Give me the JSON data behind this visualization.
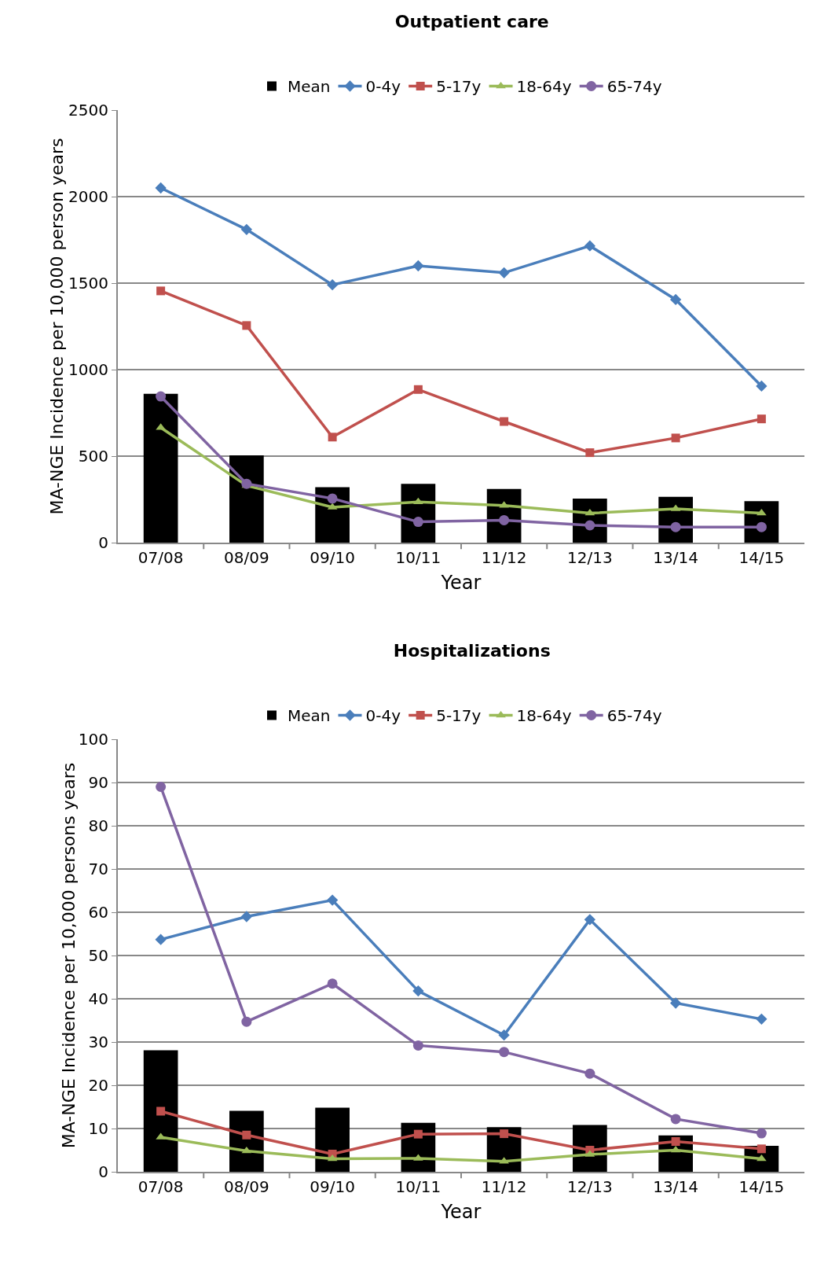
{
  "chart_data": [
    {
      "type": "line",
      "title": "Outpatient care",
      "xlabel": "Year",
      "ylabel": "MA-NGE Incidence per 10,000 person years",
      "categories": [
        "07/08",
        "08/09",
        "09/10",
        "10/11",
        "11/12",
        "12/13",
        "13/14",
        "14/15"
      ],
      "ylim": [
        0,
        2500
      ],
      "yticks": [
        0,
        500,
        1000,
        1500,
        2000,
        2500
      ],
      "grid": "y",
      "legend": "top",
      "series": [
        {
          "name": "Mean",
          "type": "bar",
          "color": "#000000",
          "values": [
            860,
            505,
            320,
            340,
            310,
            255,
            265,
            240
          ]
        },
        {
          "name": "0-4y",
          "color": "#4a7ebb",
          "marker": "diamond",
          "values": [
            2050,
            1810,
            1490,
            1600,
            1560,
            1715,
            1405,
            905
          ]
        },
        {
          "name": "5-17y",
          "color": "#c0504d",
          "marker": "square",
          "values": [
            1455,
            1255,
            610,
            885,
            700,
            520,
            605,
            715
          ]
        },
        {
          "name": "18-64y",
          "color": "#9bbb59",
          "marker": "triangle",
          "values": [
            665,
            330,
            205,
            235,
            215,
            170,
            195,
            170
          ]
        },
        {
          "name": "65-74y",
          "color": "#8064a2",
          "marker": "circle",
          "values": [
            845,
            340,
            255,
            120,
            130,
            100,
            90,
            90
          ]
        }
      ]
    },
    {
      "type": "line",
      "title": "Hospitalizations",
      "xlabel": "Year",
      "ylabel": "MA-NGE Incidence per 10,000 persons years",
      "categories": [
        "07/08",
        "08/09",
        "09/10",
        "10/11",
        "11/12",
        "12/13",
        "13/14",
        "14/15"
      ],
      "ylim": [
        0,
        100
      ],
      "yticks": [
        0,
        10,
        20,
        30,
        40,
        50,
        60,
        70,
        80,
        90,
        100
      ],
      "grid": "y",
      "legend": "top",
      "series": [
        {
          "name": "Mean",
          "type": "bar",
          "color": "#000000",
          "values": [
            28.1,
            14.1,
            14.8,
            11.3,
            10.3,
            10.8,
            8.4,
            6
          ]
        },
        {
          "name": "0-4y",
          "color": "#4a7ebb",
          "marker": "diamond",
          "values": [
            53.7,
            59,
            62.8,
            41.8,
            31.6,
            58.3,
            39,
            35.3
          ]
        },
        {
          "name": "5-17y",
          "color": "#c0504d",
          "marker": "square",
          "values": [
            14,
            8.5,
            4.1,
            8.7,
            8.8,
            5,
            7,
            5.3
          ]
        },
        {
          "name": "18-64y",
          "color": "#9bbb59",
          "marker": "triangle",
          "values": [
            8,
            4.8,
            3,
            3.1,
            2.4,
            4,
            5,
            3
          ]
        },
        {
          "name": "65-74y",
          "color": "#8064a2",
          "marker": "circle",
          "values": [
            89,
            34.7,
            43.5,
            29.2,
            27.7,
            22.7,
            12.2,
            8.9
          ]
        }
      ]
    }
  ]
}
